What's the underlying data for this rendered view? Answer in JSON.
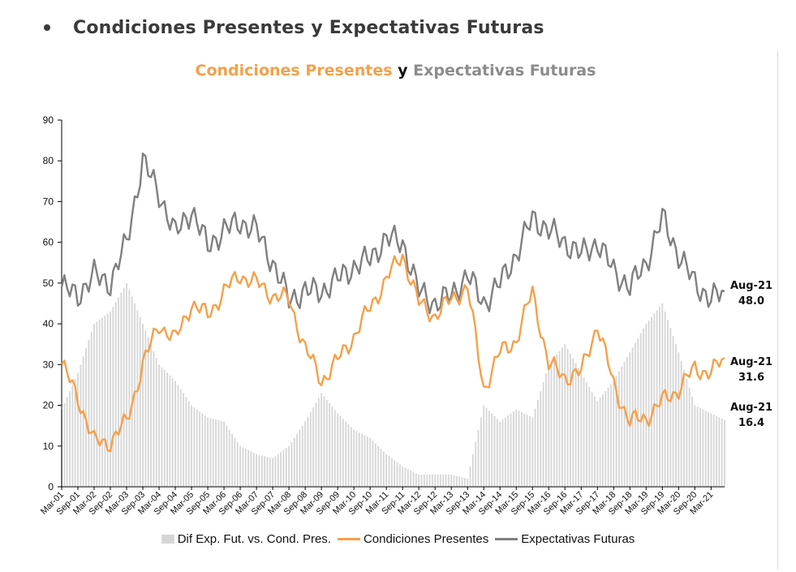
{
  "page": {
    "heading": "Condiciones Presentes y Expectativas Futuras"
  },
  "chart_data": {
    "type": "line",
    "title_parts": [
      "Condiciones Presentes",
      "y",
      "Expectativas Futuras"
    ],
    "title_colors": [
      "#F5A04A",
      "#111111",
      "#8C8C8C"
    ],
    "ylim": [
      0,
      90
    ],
    "yticks": [
      0,
      10,
      20,
      30,
      40,
      50,
      60,
      70,
      80,
      90
    ],
    "x_start": "Mar-01",
    "x_end": "Aug-21",
    "xtick_labels": [
      "Mar-01",
      "Sep-01",
      "Mar-02",
      "Sep-02",
      "Mar-03",
      "Sep-03",
      "Mar-04",
      "Sep-04",
      "Mar-05",
      "Sep-05",
      "Mar-06",
      "Sep-06",
      "Mar-07",
      "Sep-07",
      "Mar-08",
      "Sep-08",
      "Mar-09",
      "Sep-09",
      "Mar-10",
      "Sep-10",
      "Mar-11",
      "Sep-11",
      "Mar-12",
      "Sep-12",
      "Mar-13",
      "Sep-13",
      "Mar-14",
      "Sep-14",
      "Mar-15",
      "Sep-15",
      "Mar-16",
      "Sep-16",
      "Mar-17",
      "Sep-17",
      "Mar-18",
      "Sep-18",
      "Mar-19",
      "Sep-19",
      "Mar-20",
      "Sep-20",
      "Mar-21"
    ],
    "grid": false,
    "legend_placement": "bottom",
    "series": [
      {
        "name": "Dif Exp. Fut. vs. Cond. Pres.",
        "kind": "bar",
        "color": "#d6d6d6",
        "anchors": [
          [
            "Mar-01",
            19
          ],
          [
            "Sep-01",
            28
          ],
          [
            "Mar-02",
            40
          ],
          [
            "Sep-02",
            43
          ],
          [
            "Mar-03",
            50
          ],
          [
            "Sep-03",
            40
          ],
          [
            "Mar-04",
            30
          ],
          [
            "Sep-04",
            26
          ],
          [
            "Mar-05",
            20
          ],
          [
            "Sep-05",
            17
          ],
          [
            "Mar-06",
            16
          ],
          [
            "Sep-06",
            10
          ],
          [
            "Mar-07",
            8
          ],
          [
            "Sep-07",
            7
          ],
          [
            "Mar-08",
            10
          ],
          [
            "Sep-08",
            16
          ],
          [
            "Mar-09",
            23
          ],
          [
            "Sep-09",
            18
          ],
          [
            "Mar-10",
            14
          ],
          [
            "Sep-10",
            12
          ],
          [
            "Mar-11",
            8
          ],
          [
            "Sep-11",
            5
          ],
          [
            "Mar-12",
            3
          ],
          [
            "Sep-12",
            3
          ],
          [
            "Mar-13",
            3
          ],
          [
            "Sep-13",
            2
          ],
          [
            "Mar-14",
            20
          ],
          [
            "Sep-14",
            16
          ],
          [
            "Mar-15",
            19
          ],
          [
            "Sep-15",
            17
          ],
          [
            "Mar-16",
            30
          ],
          [
            "Sep-16",
            35
          ],
          [
            "Mar-17",
            28
          ],
          [
            "Sep-17",
            21
          ],
          [
            "Mar-18",
            26
          ],
          [
            "Sep-18",
            33
          ],
          [
            "Mar-19",
            40
          ],
          [
            "Sep-19",
            45
          ],
          [
            "Mar-20",
            33
          ],
          [
            "Sep-20",
            20
          ],
          [
            "Mar-21",
            18
          ],
          [
            "Aug-21",
            16.4
          ]
        ],
        "end_label": {
          "date": "Aug-21",
          "value": "16.4"
        }
      },
      {
        "name": "Condiciones Presentes",
        "kind": "line",
        "color": "#F5A04A",
        "anchors": [
          [
            "Mar-01",
            30
          ],
          [
            "Sep-01",
            22
          ],
          [
            "Mar-02",
            11
          ],
          [
            "Sep-02",
            11
          ],
          [
            "Mar-03",
            16
          ],
          [
            "Sep-03",
            30
          ],
          [
            "Mar-04",
            40
          ],
          [
            "Sep-04",
            36
          ],
          [
            "Mar-05",
            45
          ],
          [
            "Sep-05",
            42
          ],
          [
            "Mar-06",
            48
          ],
          [
            "Sep-06",
            52
          ],
          [
            "Mar-07",
            50
          ],
          [
            "Sep-07",
            47
          ],
          [
            "Mar-08",
            46
          ],
          [
            "Sep-08",
            34
          ],
          [
            "Mar-09",
            26
          ],
          [
            "Sep-09",
            31
          ],
          [
            "Mar-10",
            37
          ],
          [
            "Sep-10",
            44
          ],
          [
            "Mar-11",
            51
          ],
          [
            "Sep-11",
            57
          ],
          [
            "Mar-12",
            45
          ],
          [
            "Sep-12",
            42
          ],
          [
            "Mar-13",
            46
          ],
          [
            "Sep-13",
            49
          ],
          [
            "Mar-14",
            24
          ],
          [
            "Sep-14",
            33
          ],
          [
            "Mar-15",
            36
          ],
          [
            "Sep-15",
            48
          ],
          [
            "Mar-16",
            30
          ],
          [
            "Sep-16",
            27
          ],
          [
            "Mar-17",
            28
          ],
          [
            "Sep-17",
            40
          ],
          [
            "Mar-18",
            25
          ],
          [
            "Sep-18",
            16
          ],
          [
            "Mar-19",
            17
          ],
          [
            "Sep-19",
            21
          ],
          [
            "Mar-20",
            24
          ],
          [
            "Sep-20",
            29
          ],
          [
            "Mar-21",
            28
          ],
          [
            "Aug-21",
            31.6
          ]
        ],
        "end_label": {
          "date": "Aug-21",
          "value": "31.6"
        }
      },
      {
        "name": "Expectativas Futuras",
        "kind": "line",
        "color": "#808080",
        "anchors": [
          [
            "Mar-01",
            49
          ],
          [
            "Sep-01",
            47
          ],
          [
            "Mar-02",
            52
          ],
          [
            "Sep-02",
            50
          ],
          [
            "Mar-03",
            60
          ],
          [
            "Sep-03",
            80
          ],
          [
            "Mar-04",
            72
          ],
          [
            "Sep-04",
            62
          ],
          [
            "Mar-05",
            68
          ],
          [
            "Sep-05",
            59
          ],
          [
            "Mar-06",
            63
          ],
          [
            "Sep-06",
            65
          ],
          [
            "Mar-07",
            63
          ],
          [
            "Sep-07",
            55
          ],
          [
            "Mar-08",
            46
          ],
          [
            "Sep-08",
            48
          ],
          [
            "Mar-09",
            48
          ],
          [
            "Sep-09",
            51
          ],
          [
            "Mar-10",
            54
          ],
          [
            "Sep-10",
            56
          ],
          [
            "Mar-11",
            61
          ],
          [
            "Sep-11",
            60
          ],
          [
            "Mar-12",
            48
          ],
          [
            "Sep-12",
            45
          ],
          [
            "Mar-13",
            47
          ],
          [
            "Sep-13",
            52
          ],
          [
            "Mar-14",
            45
          ],
          [
            "Sep-14",
            50
          ],
          [
            "Mar-15",
            57
          ],
          [
            "Sep-15",
            66
          ],
          [
            "Mar-16",
            63
          ],
          [
            "Sep-16",
            60
          ],
          [
            "Mar-17",
            57
          ],
          [
            "Sep-17",
            60
          ],
          [
            "Mar-18",
            53
          ],
          [
            "Sep-18",
            49
          ],
          [
            "Mar-19",
            55
          ],
          [
            "Sep-19",
            66
          ],
          [
            "Mar-20",
            57
          ],
          [
            "Sep-20",
            50
          ],
          [
            "Mar-21",
            46
          ],
          [
            "Aug-21",
            48.0
          ]
        ],
        "end_label": {
          "date": "Aug-21",
          "value": "48.0"
        }
      }
    ]
  }
}
